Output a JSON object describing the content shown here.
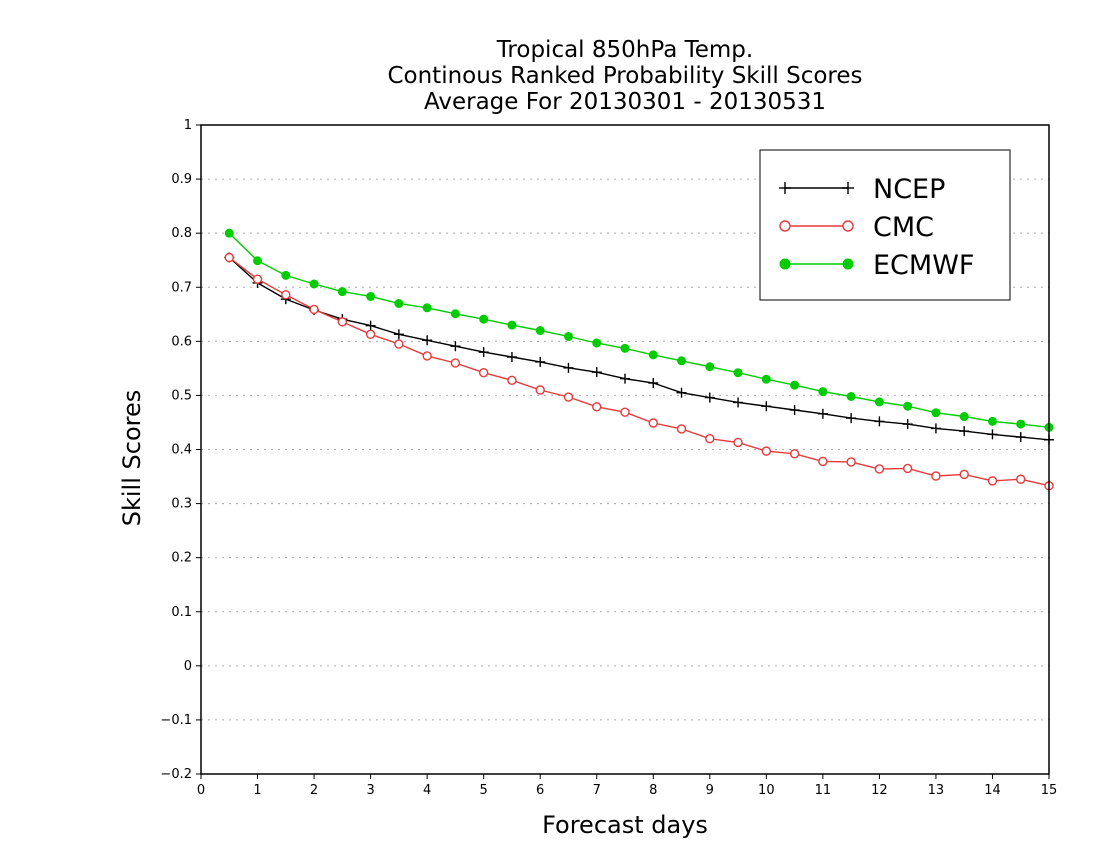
{
  "chart_data": {
    "type": "line",
    "title": [
      "Tropical 850hPa Temp.",
      "Continous Ranked Probability Skill Scores",
      "Average For 20130301 - 20130531"
    ],
    "xlabel": "Forecast days",
    "ylabel": "Skill Scores",
    "xlim": [
      0,
      15
    ],
    "ylim": [
      -0.2,
      1
    ],
    "xticks": [
      "0",
      "1",
      "2",
      "3",
      "4",
      "5",
      "6",
      "7",
      "8",
      "9",
      "10",
      "11",
      "12",
      "13",
      "14",
      "15"
    ],
    "yticks": [
      "−0.2",
      "−0.1",
      "0",
      "0.1",
      "0.2",
      "0.3",
      "0.4",
      "0.5",
      "0.6",
      "0.7",
      "0.8",
      "0.9",
      "1"
    ],
    "grid": true,
    "legend_position": "top-right",
    "x": [
      0.5,
      1,
      1.5,
      2,
      2.5,
      3,
      3.5,
      4,
      4.5,
      5,
      5.5,
      6,
      6.5,
      7,
      7.5,
      8,
      8.5,
      9,
      9.5,
      10,
      10.5,
      11,
      11.5,
      12,
      12.5,
      13,
      13.5,
      14,
      14.5,
      15
    ],
    "series": [
      {
        "name": "NCEP",
        "color": "#000000",
        "marker": "plus",
        "values": [
          0.755,
          0.708,
          0.678,
          0.658,
          0.641,
          0.629,
          0.613,
          0.602,
          0.591,
          0.58,
          0.571,
          0.562,
          0.551,
          0.543,
          0.531,
          0.523,
          0.505,
          0.496,
          0.487,
          0.48,
          0.473,
          0.466,
          0.458,
          0.452,
          0.447,
          0.439,
          0.434,
          0.428,
          0.423,
          0.418
        ]
      },
      {
        "name": "CMC",
        "color": "#e8393a",
        "marker": "open-circle",
        "values": [
          0.755,
          0.715,
          0.686,
          0.659,
          0.636,
          0.613,
          0.595,
          0.573,
          0.56,
          0.542,
          0.528,
          0.51,
          0.497,
          0.479,
          0.469,
          0.449,
          0.438,
          0.42,
          0.413,
          0.397,
          0.392,
          0.378,
          0.377,
          0.364,
          0.365,
          0.351,
          0.354,
          0.342,
          0.345,
          0.333
        ]
      },
      {
        "name": "ECMWF",
        "color": "#00cc00",
        "marker": "filled-circle",
        "values": [
          0.8,
          0.749,
          0.722,
          0.706,
          0.692,
          0.683,
          0.67,
          0.662,
          0.651,
          0.641,
          0.63,
          0.62,
          0.609,
          0.597,
          0.587,
          0.575,
          0.564,
          0.553,
          0.542,
          0.53,
          0.519,
          0.507,
          0.498,
          0.488,
          0.48,
          0.468,
          0.461,
          0.452,
          0.447,
          0.441
        ]
      }
    ]
  }
}
